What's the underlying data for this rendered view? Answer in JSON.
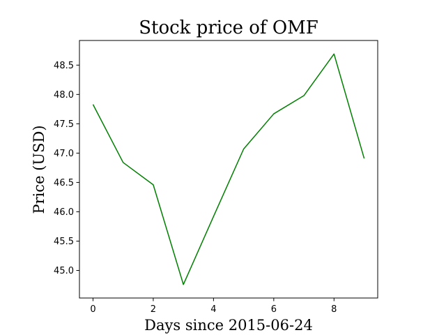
{
  "chart_data": {
    "type": "line",
    "title": "Stock price of OMF",
    "xlabel": "Days since 2015-06-24",
    "ylabel": "Price (USD)",
    "x": [
      0,
      1,
      2,
      3,
      4,
      5,
      6,
      7,
      8,
      9
    ],
    "series": [
      {
        "values": [
          47.83,
          46.84,
          46.46,
          44.76,
          45.92,
          47.07,
          47.67,
          47.98,
          48.69,
          46.91
        ],
        "color": "#008000"
      }
    ],
    "xlim": [
      -0.45,
      9.45
    ],
    "ylim": [
      44.53,
      48.92
    ],
    "xticks": [
      0,
      2,
      4,
      6,
      8
    ],
    "yticks": [
      45.0,
      45.5,
      46.0,
      46.5,
      47.0,
      47.5,
      48.0,
      48.5
    ],
    "grid": false
  }
}
